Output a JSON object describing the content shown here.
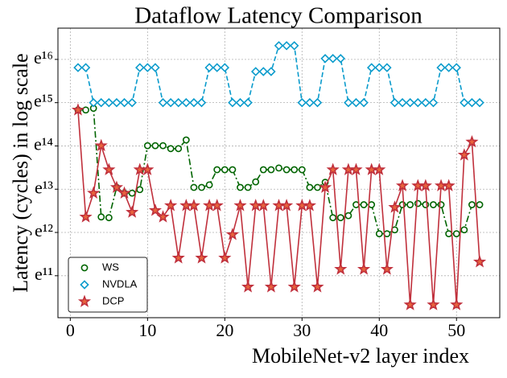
{
  "chart_data": {
    "type": "line",
    "title": "Dataflow Latency Comparison",
    "x_label": "MobileNet-v2 layer index",
    "y_label": "Latency (cycles) in log scale",
    "yscale": "log",
    "grid": true,
    "legend": "lower left",
    "xlim": [
      -1.6,
      55.6
    ],
    "xticks": [
      0,
      10,
      20,
      30,
      40,
      50
    ],
    "ylim": [
      22700,
      18300000
    ],
    "yticks": [
      {
        "value": 59874.14,
        "label": "e¹¹"
      },
      {
        "value": 162754.79,
        "label": "e¹²"
      },
      {
        "value": 442413.39,
        "label": "e¹³"
      },
      {
        "value": 1202604.28,
        "label": "e¹⁴"
      },
      {
        "value": 3269017.37,
        "label": "e¹⁵"
      },
      {
        "value": 8886110.52,
        "label": "e¹⁶"
      }
    ],
    "x": [
      1,
      2,
      3,
      4,
      5,
      6,
      7,
      8,
      9,
      10,
      11,
      12,
      13,
      14,
      15,
      16,
      17,
      18,
      19,
      20,
      21,
      22,
      23,
      24,
      25,
      26,
      27,
      28,
      29,
      30,
      31,
      32,
      33,
      34,
      35,
      36,
      37,
      38,
      39,
      40,
      41,
      42,
      43,
      44,
      45,
      46,
      47,
      48,
      49,
      50,
      51,
      52,
      53
    ],
    "series": [
      {
        "name": "WS",
        "color": "#006400",
        "marker": "circle",
        "linestyle": "dashdot",
        "values": [
          2760000,
          2760000,
          2870000,
          233000,
          229000,
          461000,
          404000,
          404000,
          438000,
          1210000,
          1210000,
          1210000,
          1130000,
          1130000,
          1380000,
          461000,
          461000,
          489000,
          694000,
          694000,
          694000,
          461000,
          461000,
          524000,
          694000,
          694000,
          722000,
          694000,
          694000,
          694000,
          461000,
          461000,
          519000,
          229000,
          229000,
          240000,
          309000,
          309000,
          309000,
          158000,
          158000,
          173000,
          309000,
          309000,
          318000,
          309000,
          309000,
          309000,
          158000,
          158000,
          173000,
          309000,
          309000
        ]
      },
      {
        "name": "NVDLA",
        "color": "#0a9bcc",
        "marker": "diamond",
        "linestyle": "dashed",
        "values": [
          7350000,
          7350000,
          3270000,
          3270000,
          3270000,
          3270000,
          3270000,
          3270000,
          7350000,
          7350000,
          7350000,
          3270000,
          3270000,
          3270000,
          3270000,
          3270000,
          3270000,
          7350000,
          7350000,
          7350000,
          3270000,
          3270000,
          3270000,
          6710000,
          6710000,
          6710000,
          12200000,
          12200000,
          12200000,
          3270000,
          3270000,
          3270000,
          9070000,
          9070000,
          9070000,
          3270000,
          3270000,
          3270000,
          7350000,
          7350000,
          7350000,
          3270000,
          3270000,
          3270000,
          3270000,
          3270000,
          3270000,
          7350000,
          7350000,
          7350000,
          3270000,
          3270000,
          3270000
        ]
      },
      {
        "name": "DCP",
        "color": "#c0303c",
        "marker": "star",
        "linestyle": "solid",
        "values": [
          2760000,
          233000,
          404000,
          1210000,
          694000,
          461000,
          404000,
          260000,
          694000,
          694000,
          271000,
          233000,
          303000,
          90200,
          303000,
          303000,
          90200,
          303000,
          303000,
          90200,
          155000,
          303000,
          46200,
          303000,
          303000,
          46200,
          303000,
          303000,
          46200,
          303000,
          303000,
          46200,
          461000,
          694000,
          69600,
          694000,
          694000,
          69600,
          694000,
          694000,
          69600,
          291000,
          479000,
          30600,
          479000,
          479000,
          30600,
          479000,
          479000,
          30600,
          975000,
          1320000,
          82400
        ]
      }
    ]
  }
}
